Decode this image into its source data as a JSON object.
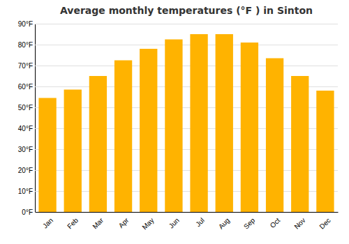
{
  "chart_data": {
    "type": "bar",
    "title": "Average monthly temperatures (°F ) in Sinton",
    "categories": [
      "Jan",
      "Feb",
      "Mar",
      "Apr",
      "May",
      "Jun",
      "Jul",
      "Aug",
      "Sep",
      "Oct",
      "Nov",
      "Dec"
    ],
    "values": [
      54.5,
      58.5,
      65.0,
      72.5,
      78.0,
      82.5,
      85.0,
      85.0,
      81.0,
      73.5,
      65.0,
      58.0
    ],
    "color": "#FFB300",
    "ylim": [
      0,
      90
    ],
    "yticks": [
      {
        "value": 0,
        "label": "0°F"
      },
      {
        "value": 10,
        "label": "10°F"
      },
      {
        "value": 20,
        "label": "20°F"
      },
      {
        "value": 30,
        "label": "30°F"
      },
      {
        "value": 40,
        "label": "40°F"
      },
      {
        "value": 50,
        "label": "50°F"
      },
      {
        "value": 60,
        "label": "60°F"
      },
      {
        "value": 70,
        "label": "70°F"
      },
      {
        "value": 80,
        "label": "80°F"
      },
      {
        "value": 90,
        "label": "90°F"
      }
    ],
    "grid": true
  }
}
